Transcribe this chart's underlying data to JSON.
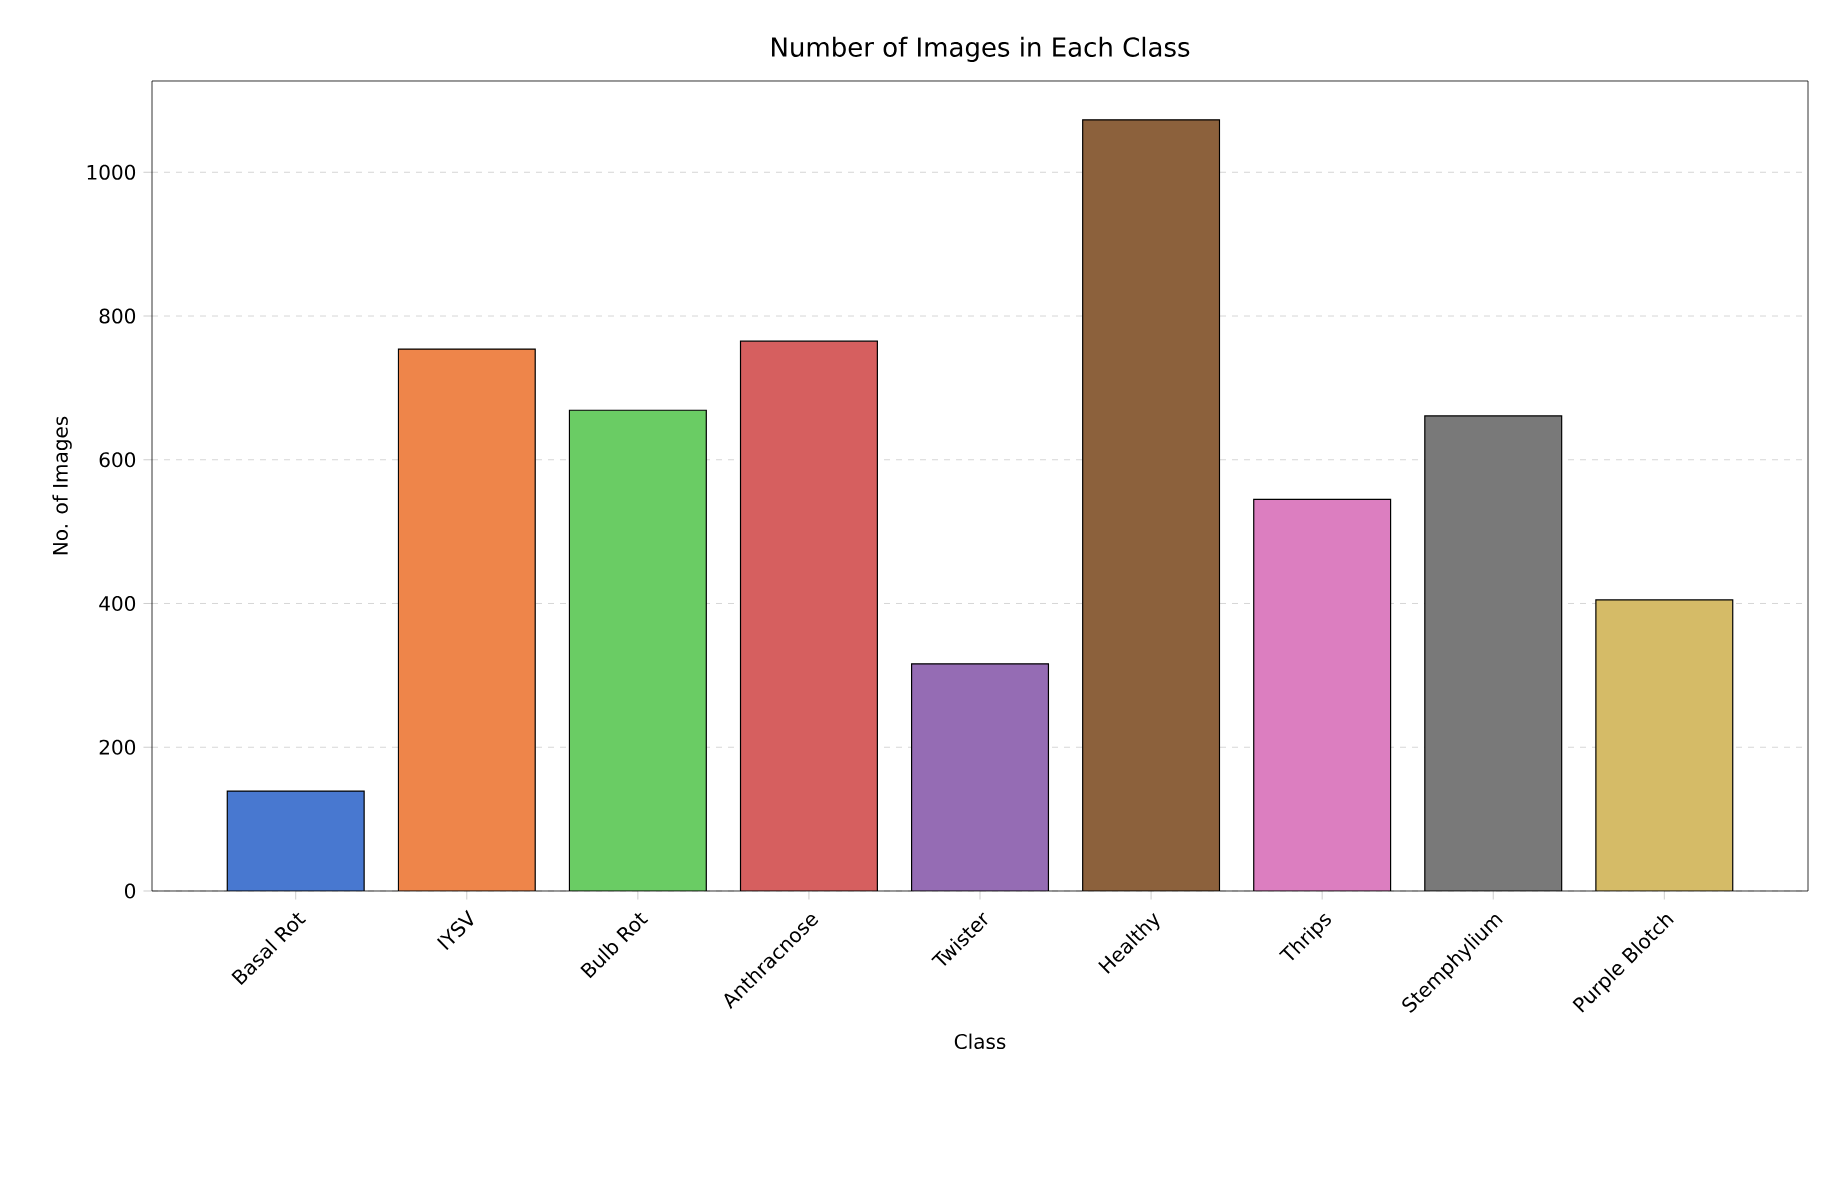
{
  "chart_data": {
    "type": "bar",
    "title": "Number of Images in Each Class",
    "xlabel": "Class",
    "ylabel": "No. of Images",
    "categories": [
      "Basal Rot",
      "IYSV",
      "Bulb Rot",
      "Anthracnose",
      "Twister",
      "Healthy",
      "Thrips",
      "Stemphylium",
      "Purple Blotch"
    ],
    "values": [
      139,
      754,
      669,
      765,
      316,
      1073,
      545,
      661,
      405
    ],
    "colors": [
      "#4878d0",
      "#ee854a",
      "#6acc64",
      "#d65f5f",
      "#956cb4",
      "#8c613c",
      "#dc7ec0",
      "#797979",
      "#d5bb67"
    ],
    "ylim": [
      0,
      1127
    ],
    "yticks": [
      0,
      200,
      400,
      600,
      800,
      1000
    ],
    "grid": "y"
  }
}
